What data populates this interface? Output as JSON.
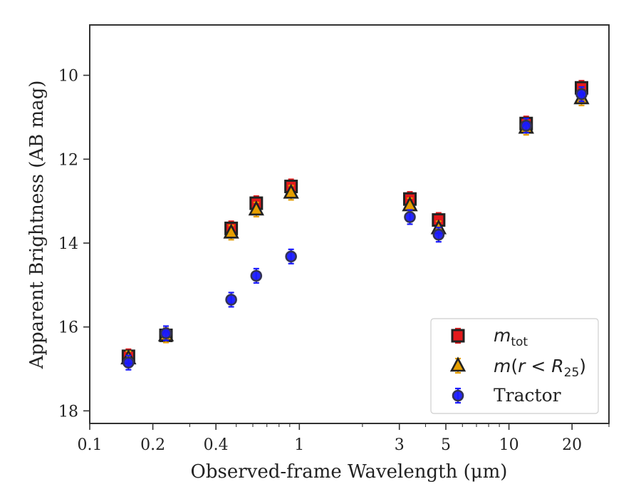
{
  "chart_data": {
    "type": "scatter",
    "title": "",
    "xlabel": "Observed-frame Wavelength (μm)",
    "ylabel": "Apparent Brightness (AB mag)",
    "xscale": "log",
    "xlim": [
      0.1,
      30
    ],
    "ylim": [
      18.3,
      8.8
    ],
    "y_inverted": true,
    "x_ticks": [
      {
        "value": 0.1,
        "label": "0.1"
      },
      {
        "value": 0.2,
        "label": "0.2"
      },
      {
        "value": 0.4,
        "label": "0.4"
      },
      {
        "value": 1,
        "label": "1"
      },
      {
        "value": 3,
        "label": "3"
      },
      {
        "value": 5,
        "label": "5"
      },
      {
        "value": 10,
        "label": "10"
      },
      {
        "value": 20,
        "label": "20"
      }
    ],
    "y_ticks": [
      {
        "value": 10,
        "label": "10"
      },
      {
        "value": 12,
        "label": "12"
      },
      {
        "value": 14,
        "label": "14"
      },
      {
        "value": 16,
        "label": "16"
      },
      {
        "value": 18,
        "label": "18"
      }
    ],
    "grid": false,
    "legend_position": "bottom-right",
    "series": [
      {
        "key": "m_tot",
        "marker": "square",
        "color": "#e41a1c",
        "edge_color": "#222222",
        "x": [
          0.153,
          0.231,
          0.473,
          0.623,
          0.913,
          3.368,
          4.618,
          12.082,
          22.194
        ],
        "y": [
          16.7,
          16.2,
          13.65,
          13.05,
          12.65,
          12.95,
          13.45,
          11.15,
          10.3
        ]
      },
      {
        "key": "m_r25",
        "marker": "triangle",
        "color": "#e69f00",
        "edge_color": "#222222",
        "x": [
          0.153,
          0.231,
          0.473,
          0.623,
          0.913,
          3.368,
          4.618,
          12.082,
          22.194
        ],
        "y": [
          16.75,
          16.2,
          13.75,
          13.2,
          12.8,
          13.1,
          13.65,
          11.25,
          10.55
        ]
      },
      {
        "key": "tractor",
        "name": "Tractor",
        "marker": "circle",
        "color": "#1a1aff",
        "edge_color": "#333355",
        "x": [
          0.153,
          0.231,
          0.473,
          0.623,
          0.913,
          3.368,
          4.618,
          12.082,
          22.194
        ],
        "y": [
          16.85,
          16.15,
          15.35,
          14.78,
          14.32,
          13.38,
          13.8,
          11.2,
          10.45
        ]
      }
    ]
  }
}
